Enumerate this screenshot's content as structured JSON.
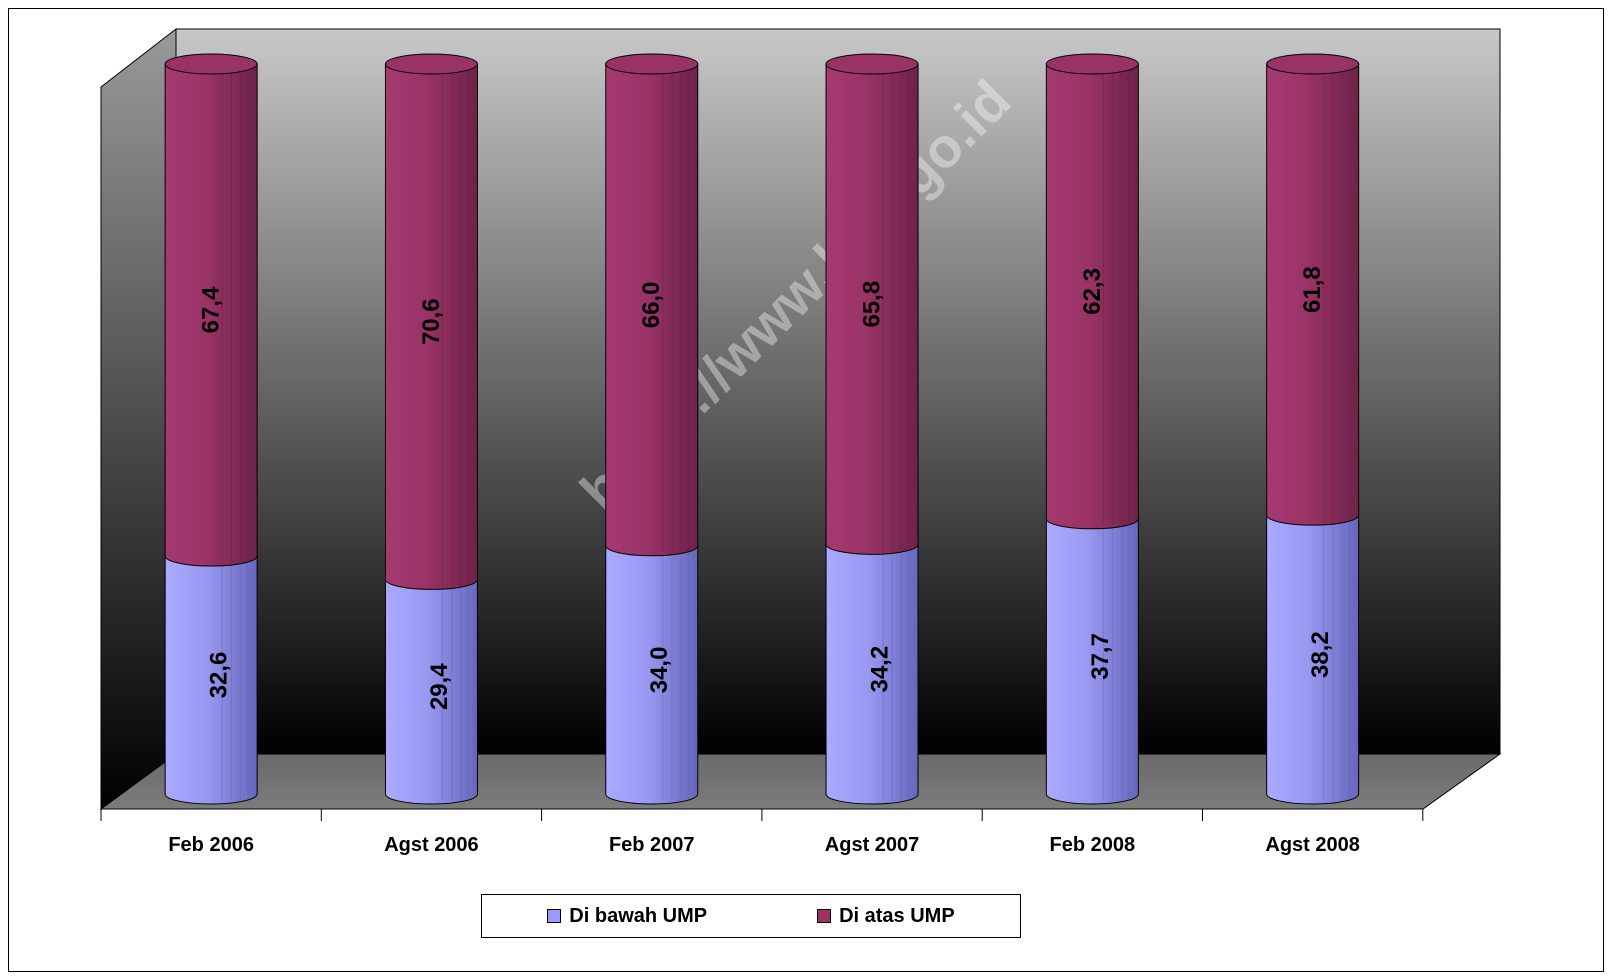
{
  "watermark": "https://www.bps.go.id",
  "chart_data": {
    "type": "bar",
    "stacked": true,
    "style": "3d-cylinder",
    "categories": [
      "Feb 2006",
      "Agst 2006",
      "Feb 2007",
      "Agst 2007",
      "Feb 2008",
      "Agst 2008"
    ],
    "series": [
      {
        "name": "Di bawah UMP",
        "values": [
          32.6,
          29.4,
          34.0,
          34.2,
          37.7,
          38.2
        ],
        "labels": [
          "32,6",
          "29,4",
          "34,0",
          "34,2",
          "37,7",
          "38,2"
        ],
        "color": "#9999ff"
      },
      {
        "name": "Di atas UMP",
        "values": [
          67.4,
          70.6,
          66.0,
          65.8,
          62.3,
          61.8
        ],
        "labels": [
          "67,4",
          "70,6",
          "66,0",
          "65,8",
          "62,3",
          "61,8"
        ],
        "color": "#993366"
      }
    ],
    "ylim": [
      0,
      100
    ],
    "grid": false,
    "legend_position": "bottom"
  }
}
